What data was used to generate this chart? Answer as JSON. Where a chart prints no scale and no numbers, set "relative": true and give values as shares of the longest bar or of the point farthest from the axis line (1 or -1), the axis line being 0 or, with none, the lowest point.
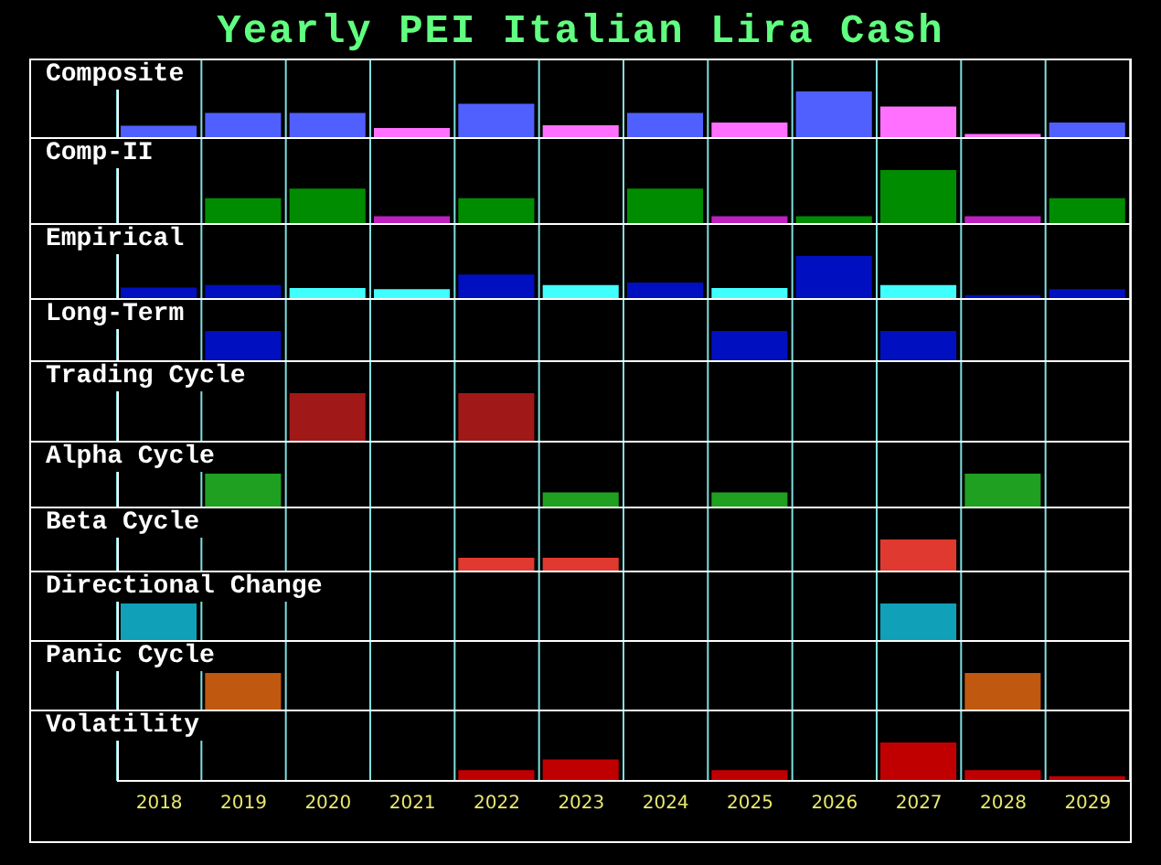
{
  "chart_data": [
    {
      "type": "bar",
      "title": "Yearly PEI Italian Lira Cash",
      "subtitle": "Composite",
      "relative": true,
      "categories": [
        "2018",
        "2019",
        "2020",
        "2021",
        "2022",
        "2023",
        "2024",
        "2025",
        "2026",
        "2027",
        "2028",
        "2029"
      ],
      "values": [
        0.25,
        0.53,
        0.53,
        0.2,
        0.73,
        0.26,
        0.53,
        0.32,
        1,
        0.67,
        0.07,
        0.32
      ],
      "colors": [
        "#5060ff",
        "#5060ff",
        "#5060ff",
        "#ff70ff",
        "#5060ff",
        "#ff70ff",
        "#5060ff",
        "#ff70ff",
        "#5060ff",
        "#ff70ff",
        "#ff70ff",
        "#5060ff"
      ],
      "grid": "x",
      "tick_labels": false
    },
    {
      "type": "bar",
      "subtitle": "Comp-II",
      "relative": true,
      "categories": [
        "2018",
        "2019",
        "2020",
        "2021",
        "2022",
        "2023",
        "2024",
        "2025",
        "2026",
        "2027",
        "2028",
        "2029"
      ],
      "values": [
        null,
        0.47,
        0.65,
        0.13,
        0.47,
        null,
        0.65,
        0.13,
        0.13,
        1,
        0.13,
        0.47
      ],
      "colors": [
        "#008c00",
        "#008c00",
        "#008c00",
        "#c020c0",
        "#008c00",
        "#008c00",
        "#008c00",
        "#c020c0",
        "#008c00",
        "#008c00",
        "#c020c0",
        "#008c00"
      ],
      "grid": "x",
      "tick_labels": false
    },
    {
      "type": "bar",
      "subtitle": "Empirical",
      "relative": true,
      "categories": [
        "2018",
        "2019",
        "2020",
        "2021",
        "2022",
        "2023",
        "2024",
        "2025",
        "2026",
        "2027",
        "2028",
        "2029"
      ],
      "values": [
        0.25,
        0.31,
        0.24,
        0.21,
        0.56,
        0.31,
        0.37,
        0.24,
        1,
        0.31,
        0.07,
        0.21
      ],
      "colors": [
        "#0010c0",
        "#0010c0",
        "#40ffff",
        "#40ffff",
        "#0010c0",
        "#40ffff",
        "#0010c0",
        "#40ffff",
        "#0010c0",
        "#40ffff",
        "#0010c0",
        "#0010c0"
      ],
      "grid": "x",
      "tick_labels": false
    },
    {
      "type": "bar",
      "subtitle": "Long-Term",
      "relative": true,
      "categories": [
        "2018",
        "2019",
        "2020",
        "2021",
        "2022",
        "2023",
        "2024",
        "2025",
        "2026",
        "2027",
        "2028",
        "2029"
      ],
      "values": [
        null,
        1,
        null,
        null,
        null,
        null,
        null,
        1,
        null,
        1,
        null,
        null
      ],
      "colors": [
        "#0010c0",
        "#0010c0",
        "#0010c0",
        "#0010c0",
        "#0010c0",
        "#0010c0",
        "#0010c0",
        "#0010c0",
        "#0010c0",
        "#0010c0",
        "#0010c0",
        "#0010c0"
      ],
      "grid": "x",
      "tick_labels": false
    },
    {
      "type": "bar",
      "subtitle": "Trading Cycle",
      "relative": true,
      "categories": [
        "2018",
        "2019",
        "2020",
        "2021",
        "2022",
        "2023",
        "2024",
        "2025",
        "2026",
        "2027",
        "2028",
        "2029"
      ],
      "values": [
        null,
        null,
        1,
        null,
        1,
        null,
        null,
        null,
        null,
        null,
        null,
        null
      ],
      "colors": [
        "#a01818",
        "#a01818",
        "#a01818",
        "#a01818",
        "#a01818",
        "#a01818",
        "#a01818",
        "#a01818",
        "#a01818",
        "#a01818",
        "#a01818",
        "#a01818"
      ],
      "grid": "x",
      "tick_labels": false
    },
    {
      "type": "bar",
      "subtitle": "Alpha Cycle",
      "relative": true,
      "categories": [
        "2018",
        "2019",
        "2020",
        "2021",
        "2022",
        "2023",
        "2024",
        "2025",
        "2026",
        "2027",
        "2028",
        "2029"
      ],
      "values": [
        null,
        1,
        null,
        null,
        null,
        0.43,
        null,
        0.43,
        null,
        null,
        1,
        null
      ],
      "colors": [
        "#20a020",
        "#20a020",
        "#20a020",
        "#20a020",
        "#20a020",
        "#20a020",
        "#20a020",
        "#20a020",
        "#20a020",
        "#20a020",
        "#20a020",
        "#20a020"
      ],
      "grid": "x",
      "tick_labels": false
    },
    {
      "type": "bar",
      "subtitle": "Beta Cycle",
      "relative": true,
      "categories": [
        "2018",
        "2019",
        "2020",
        "2021",
        "2022",
        "2023",
        "2024",
        "2025",
        "2026",
        "2027",
        "2028",
        "2029"
      ],
      "values": [
        null,
        null,
        null,
        null,
        0.41,
        0.41,
        null,
        null,
        null,
        1,
        null,
        null
      ],
      "colors": [
        "#e03a30",
        "#e03a30",
        "#e03a30",
        "#e03a30",
        "#e03a30",
        "#e03a30",
        "#e03a30",
        "#e03a30",
        "#e03a30",
        "#e03a30",
        "#e03a30",
        "#e03a30"
      ],
      "grid": "x",
      "tick_labels": false
    },
    {
      "type": "bar",
      "subtitle": "Directional Change",
      "relative": true,
      "categories": [
        "2018",
        "2019",
        "2020",
        "2021",
        "2022",
        "2023",
        "2024",
        "2025",
        "2026",
        "2027",
        "2028",
        "2029"
      ],
      "values": [
        1,
        null,
        null,
        null,
        null,
        null,
        null,
        null,
        null,
        1,
        null,
        null
      ],
      "colors": [
        "#10a0b8",
        "#10a0b8",
        "#10a0b8",
        "#10a0b8",
        "#10a0b8",
        "#10a0b8",
        "#10a0b8",
        "#10a0b8",
        "#10a0b8",
        "#10a0b8",
        "#10a0b8",
        "#10a0b8"
      ],
      "grid": "x",
      "tick_labels": false
    },
    {
      "type": "bar",
      "subtitle": "Panic Cycle",
      "relative": true,
      "categories": [
        "2018",
        "2019",
        "2020",
        "2021",
        "2022",
        "2023",
        "2024",
        "2025",
        "2026",
        "2027",
        "2028",
        "2029"
      ],
      "values": [
        null,
        1,
        null,
        null,
        null,
        null,
        null,
        null,
        null,
        null,
        1,
        null
      ],
      "colors": [
        "#c05810",
        "#c05810",
        "#c05810",
        "#c05810",
        "#c05810",
        "#c05810",
        "#c05810",
        "#c05810",
        "#c05810",
        "#c05810",
        "#c05810",
        "#c05810"
      ],
      "grid": "x",
      "tick_labels": false
    },
    {
      "type": "bar",
      "subtitle": "Volatility",
      "relative": true,
      "categories": [
        "2018",
        "2019",
        "2020",
        "2021",
        "2022",
        "2023",
        "2024",
        "2025",
        "2026",
        "2027",
        "2028",
        "2029"
      ],
      "values": [
        null,
        null,
        null,
        null,
        0.28,
        0.56,
        null,
        0.28,
        null,
        1,
        0.28,
        0.12
      ],
      "colors": [
        "#c00000",
        "#c00000",
        "#c00000",
        "#c00000",
        "#c00000",
        "#c00000",
        "#c00000",
        "#c00000",
        "#c00000",
        "#c00000",
        "#c00000",
        "#c00000"
      ],
      "grid": "x",
      "tick_labels": "x"
    }
  ]
}
